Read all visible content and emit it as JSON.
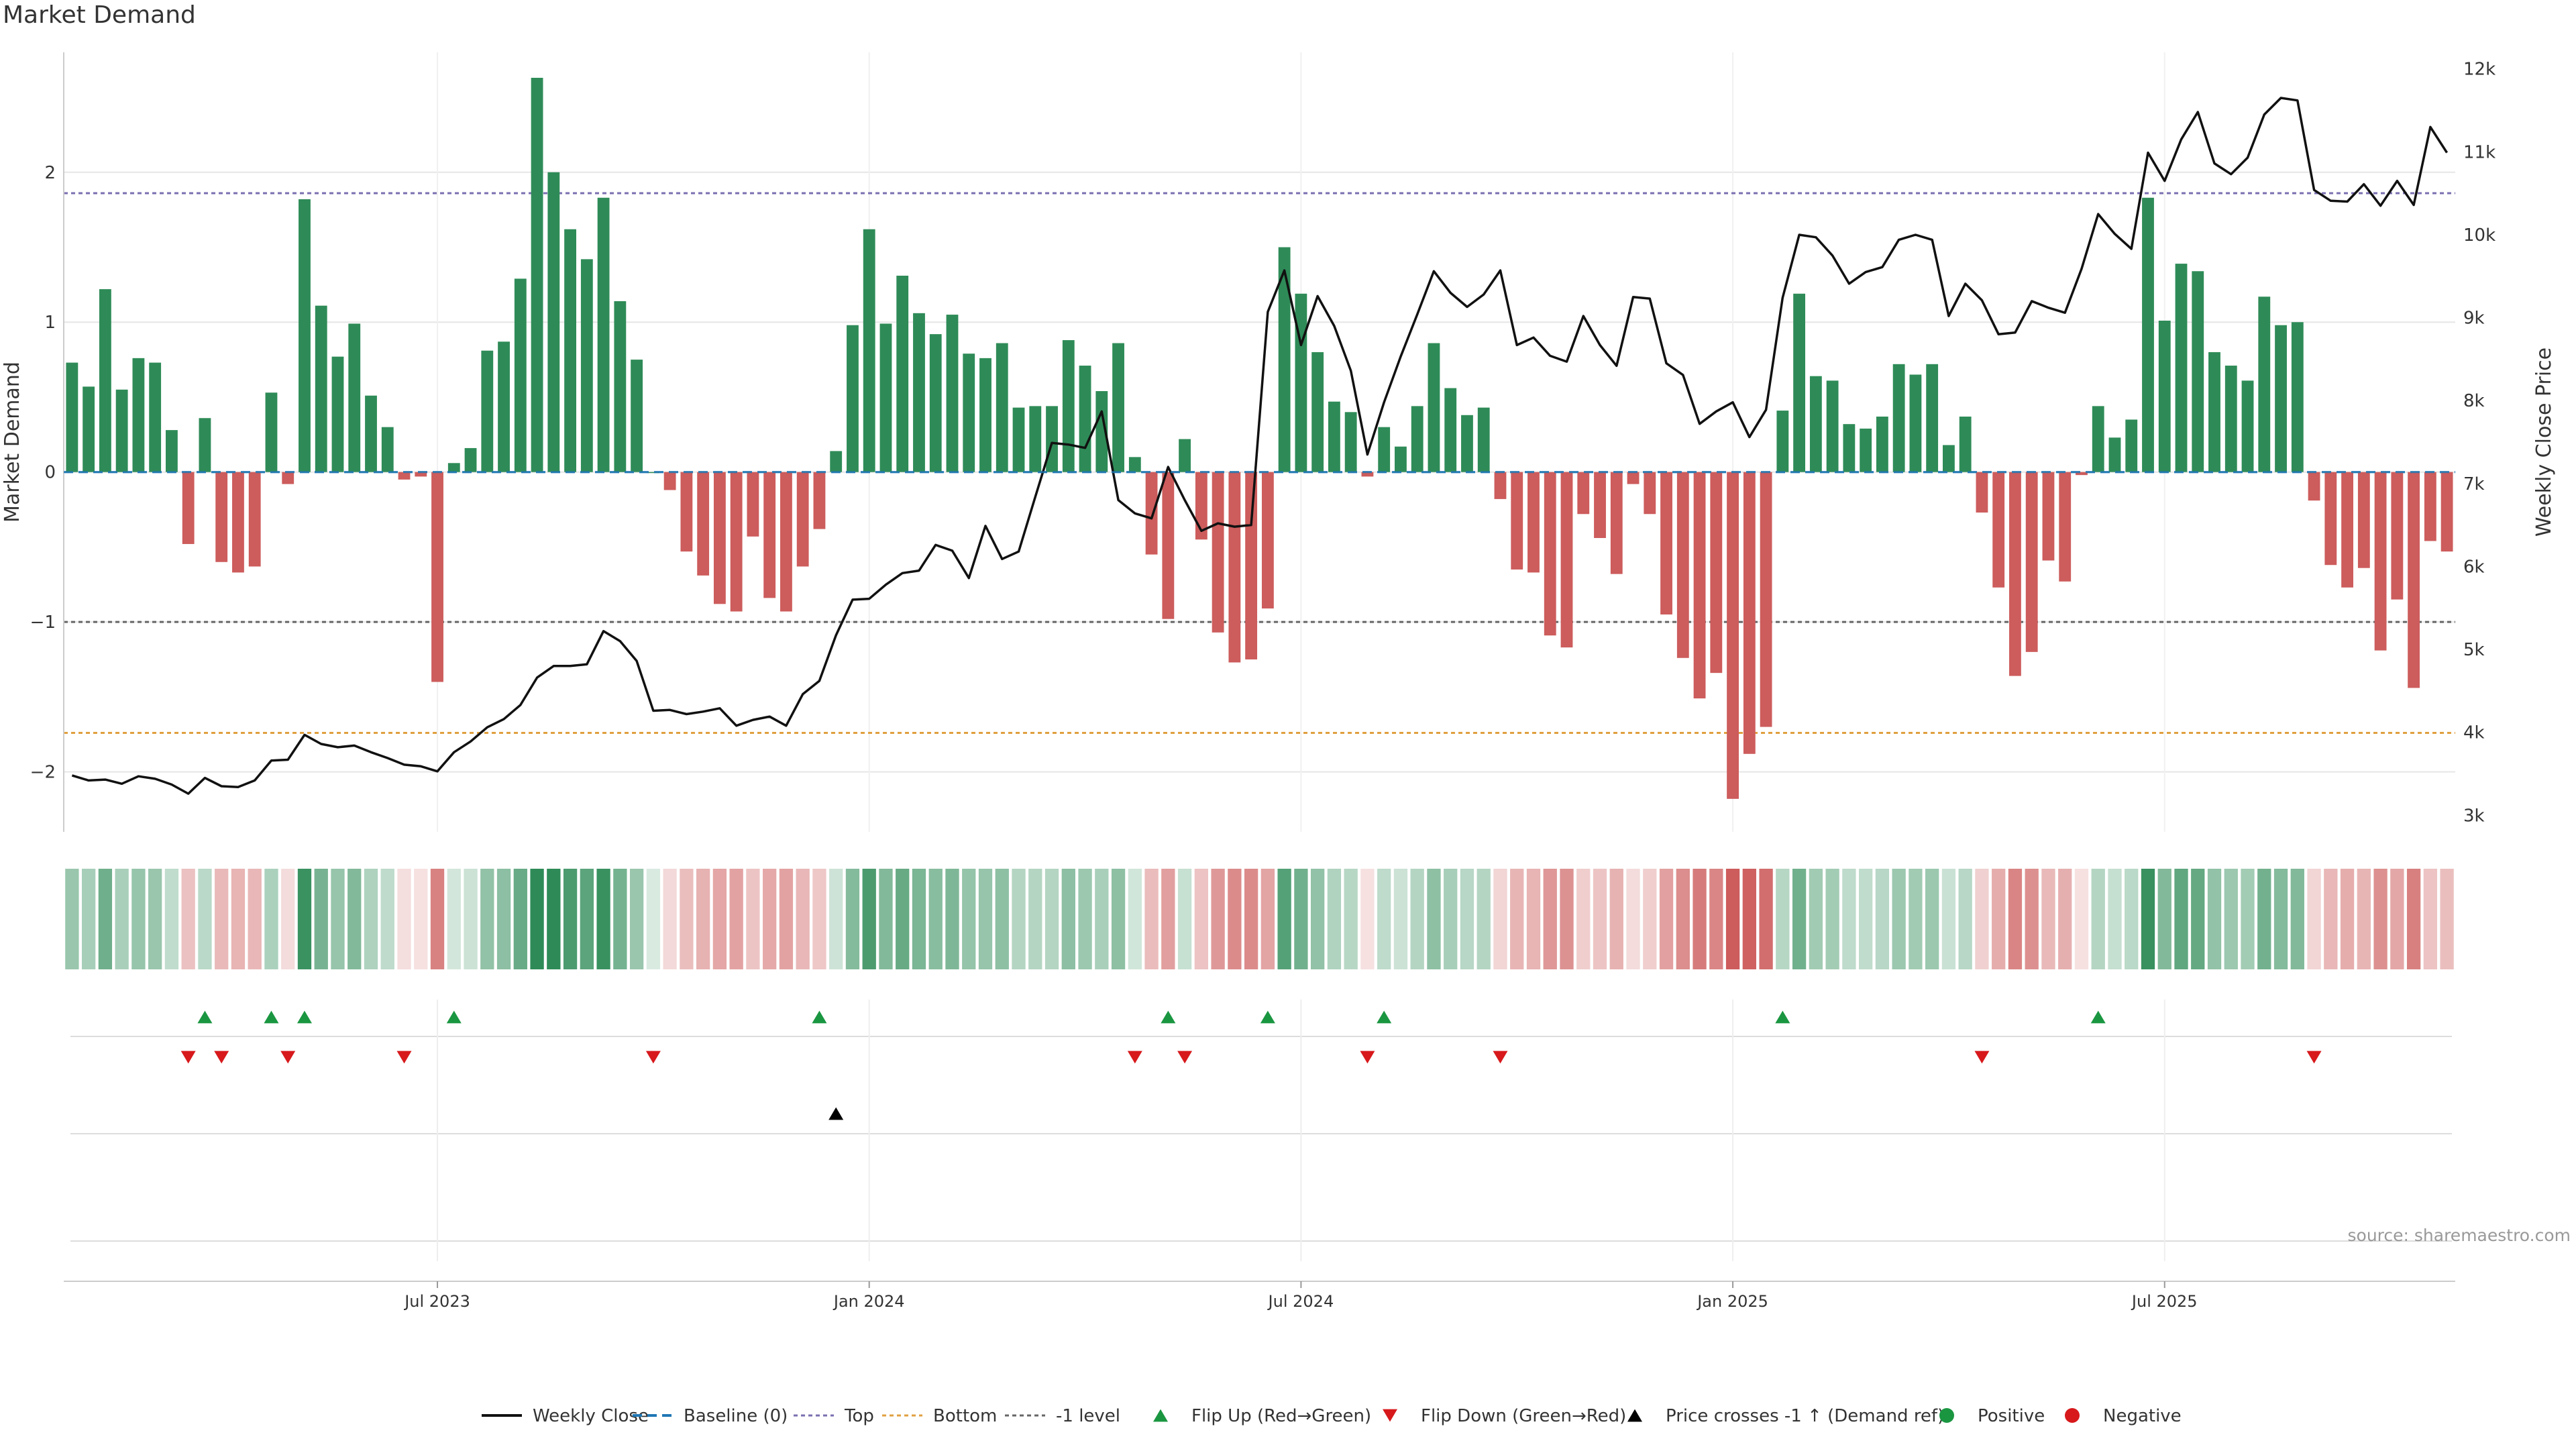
{
  "page": {
    "title": "Market Demand"
  },
  "colors": {
    "positive": "#2e8b57",
    "negative": "#cd5c5c",
    "price": "#111111",
    "top_line": "#7b6fb0",
    "bottom_line": "#e0a040",
    "minus1_line": "#666666",
    "baseline": "#1f77b4",
    "flip_up": "#1a9641",
    "flip_down": "#d7191c",
    "cross_marker": "#000000",
    "grid": "#e6e6e6",
    "axis": "#cccccc"
  },
  "source": "source: sharemaestro.com",
  "chart_data": {
    "type": "bar+line",
    "title": "Market Demand",
    "ylabel_left": "Market Demand",
    "ylabel_right": "Weekly Close Price",
    "ylim_left": [
      -2.4,
      2.8
    ],
    "ylim_right": [
      2800,
      12200
    ],
    "yticks_left": [
      {
        "v": 2,
        "label": "2"
      },
      {
        "v": 1,
        "label": "1"
      },
      {
        "v": 0,
        "label": "0"
      },
      {
        "v": -1,
        "label": "−1"
      },
      {
        "v": -2,
        "label": "−2"
      }
    ],
    "yticks_right": [
      {
        "v": 12000,
        "label": "12k"
      },
      {
        "v": 11000,
        "label": "11k"
      },
      {
        "v": 10000,
        "label": "10k"
      },
      {
        "v": 9000,
        "label": "9k"
      },
      {
        "v": 8000,
        "label": "8k"
      },
      {
        "v": 7000,
        "label": "7k"
      },
      {
        "v": 6000,
        "label": "6k"
      },
      {
        "v": 5000,
        "label": "5k"
      },
      {
        "v": 4000,
        "label": "4k"
      },
      {
        "v": 3000,
        "label": "3k"
      }
    ],
    "xticks": [
      {
        "week": 22,
        "label": "Jul 2023"
      },
      {
        "week": 48,
        "label": "Jan 2024"
      },
      {
        "week": 74,
        "label": "Jul 2024"
      },
      {
        "week": 100,
        "label": "Jan 2025"
      },
      {
        "week": 126,
        "label": "Jul 2025"
      }
    ],
    "levels": {
      "top": 1.86,
      "bottom": -1.74,
      "minus1": -1.0,
      "baseline": 0
    },
    "demand": [
      0.73,
      0.57,
      1.22,
      0.55,
      0.76,
      0.73,
      0.28,
      -0.48,
      0.36,
      -0.6,
      -0.67,
      -0.63,
      0.53,
      -0.08,
      1.82,
      1.11,
      0.77,
      0.99,
      0.51,
      0.3,
      -0.05,
      -0.03,
      -1.4,
      0.06,
      0.16,
      0.81,
      0.87,
      1.29,
      2.63,
      2.0,
      1.62,
      1.42,
      1.83,
      1.14,
      0.75,
      0.0,
      -0.12,
      -0.53,
      -0.69,
      -0.88,
      -0.93,
      -0.43,
      -0.84,
      -0.93,
      -0.63,
      -0.38,
      0.14,
      0.98,
      1.62,
      0.99,
      1.31,
      1.06,
      0.92,
      1.05,
      0.79,
      0.76,
      0.86,
      0.43,
      0.44,
      0.44,
      0.88,
      0.71,
      0.54,
      0.86,
      0.1,
      -0.55,
      -0.98,
      0.22,
      -0.45,
      -1.07,
      -1.27,
      -1.25,
      -0.91,
      1.5,
      1.19,
      0.8,
      0.47,
      0.4,
      -0.03,
      0.3,
      0.17,
      0.44,
      0.86,
      0.56,
      0.38,
      0.43,
      -0.18,
      -0.65,
      -0.67,
      -1.09,
      -1.17,
      -0.28,
      -0.44,
      -0.68,
      -0.08,
      -0.28,
      -0.95,
      -1.24,
      -1.51,
      -1.34,
      -2.18,
      -1.88,
      -1.7,
      0.41,
      1.19,
      0.64,
      0.61,
      0.32,
      0.29,
      0.37,
      0.72,
      0.65,
      0.72,
      0.18,
      0.37,
      -0.27,
      -0.77,
      -1.36,
      -1.2,
      -0.59,
      -0.73,
      -0.02,
      0.44,
      0.23,
      0.35,
      1.83,
      1.01,
      1.39,
      1.34,
      0.8,
      0.71,
      0.61,
      1.17,
      0.98,
      1.0,
      -0.19,
      -0.62,
      -0.77,
      -0.64,
      -1.19,
      -0.85,
      -1.44,
      -0.46,
      -0.53
    ],
    "price": [
      3480,
      3420,
      3430,
      3380,
      3470,
      3440,
      3370,
      3260,
      3450,
      3350,
      3340,
      3420,
      3660,
      3670,
      3970,
      3860,
      3820,
      3840,
      3760,
      3690,
      3610,
      3590,
      3530,
      3760,
      3890,
      4060,
      4160,
      4330,
      4660,
      4800,
      4800,
      4820,
      5220,
      5100,
      4860,
      4260,
      4270,
      4220,
      4250,
      4290,
      4080,
      4150,
      4190,
      4080,
      4460,
      4620,
      5170,
      5600,
      5610,
      5780,
      5920,
      5950,
      6260,
      6190,
      5860,
      6490,
      6090,
      6180,
      6840,
      7490,
      7470,
      7430,
      7870,
      6800,
      6640,
      6580,
      7200,
      6800,
      6430,
      6520,
      6480,
      6500,
      9070,
      9570,
      8670,
      9260,
      8900,
      8360,
      7350,
      7980,
      8530,
      9040,
      9560,
      9300,
      9130,
      9280,
      9570,
      8670,
      8760,
      8540,
      8470,
      9020,
      8670,
      8420,
      9250,
      9230,
      8450,
      8310,
      7720,
      7870,
      7980,
      7560,
      7890,
      9240,
      10000,
      9970,
      9750,
      9410,
      9550,
      9610,
      9940,
      10000,
      9940,
      9020,
      9410,
      9210,
      8800,
      8820,
      9200,
      9120,
      9060,
      9590,
      10250,
      10010,
      9830,
      10990,
      10650,
      11150,
      11480,
      10860,
      10730,
      10930,
      11450,
      11650,
      11620,
      10540,
      10410,
      10400,
      10610,
      10350,
      10650,
      10360,
      11300,
      10990
    ],
    "flip_up_weeks": [
      8,
      12,
      14,
      23,
      45,
      66,
      72,
      79,
      103,
      122
    ],
    "flip_down_weeks": [
      7,
      9,
      13,
      20,
      35,
      64,
      67,
      78,
      86,
      115,
      135
    ],
    "cross_up_weeks": [
      46
    ],
    "legend": [
      {
        "kind": "line",
        "label": "Weekly Close"
      },
      {
        "kind": "dashed",
        "label": "Baseline (0)"
      },
      {
        "kind": "dotted-top",
        "label": "Top"
      },
      {
        "kind": "dotted-bottom",
        "label": "Bottom"
      },
      {
        "kind": "dotted-minus1",
        "label": "-1 level"
      },
      {
        "kind": "tri-up-green",
        "label": "Flip Up (Red→Green)"
      },
      {
        "kind": "tri-down-red",
        "label": "Flip Down (Green→Red)"
      },
      {
        "kind": "tri-up-black",
        "label": "Price crosses -1 ↑ (Demand ref)"
      },
      {
        "kind": "dot-green",
        "label": "Positive"
      },
      {
        "kind": "dot-red",
        "label": "Negative"
      }
    ]
  }
}
